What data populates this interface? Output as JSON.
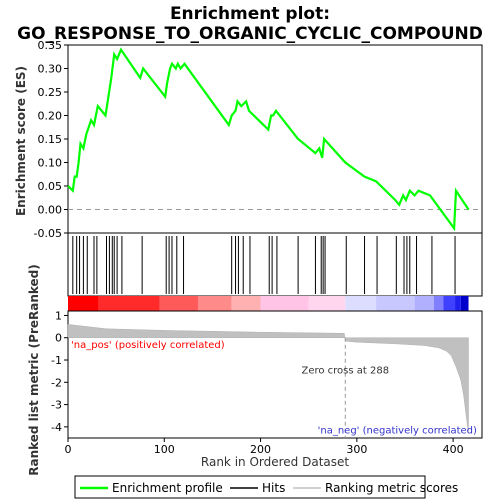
{
  "chart_data": {
    "type": "line",
    "title_line1": "Enrichment plot:",
    "title_line2": "GO_RESPONSE_TO_ORGANIC_CYCLIC_COMPOUND",
    "es_panel": {
      "ylabel": "Enrichment score (ES)",
      "ylim": [
        -0.05,
        0.35
      ],
      "yticks": [
        "-0.05",
        "0.00",
        "0.05",
        "0.10",
        "0.15",
        "0.20",
        "0.25",
        "0.30",
        "0.35"
      ],
      "ytick_values": [
        -0.05,
        0,
        0.05,
        0.1,
        0.15,
        0.2,
        0.25,
        0.3,
        0.35
      ],
      "series_name": "Enrichment profile",
      "color": "#00ff00",
      "x": [
        0,
        5,
        7,
        9,
        11,
        13,
        16,
        19,
        24,
        27,
        31,
        39,
        42,
        45,
        48,
        51,
        55,
        75,
        78,
        101,
        103,
        106,
        108,
        112,
        114,
        117,
        121,
        167,
        170,
        174,
        176,
        180,
        185,
        188,
        208,
        211,
        213,
        216,
        239,
        257,
        261,
        264,
        266,
        288,
        308,
        320,
        340,
        344,
        348,
        351,
        355,
        360,
        364,
        376,
        401,
        403,
        416
      ],
      "y": [
        0.05,
        0.04,
        0.07,
        0.07,
        0.1,
        0.14,
        0.13,
        0.16,
        0.19,
        0.18,
        0.22,
        0.2,
        0.24,
        0.28,
        0.33,
        0.32,
        0.34,
        0.28,
        0.3,
        0.24,
        0.27,
        0.3,
        0.31,
        0.3,
        0.31,
        0.3,
        0.31,
        0.18,
        0.2,
        0.21,
        0.23,
        0.22,
        0.23,
        0.21,
        0.17,
        0.2,
        0.2,
        0.21,
        0.15,
        0.12,
        0.13,
        0.11,
        0.15,
        0.1,
        0.07,
        0.06,
        0.02,
        0.01,
        0.03,
        0.02,
        0.04,
        0.03,
        0.04,
        0.03,
        -0.04,
        0.04,
        0.0
      ]
    },
    "hits": [
      5,
      9,
      12,
      16,
      20,
      27,
      30,
      40,
      43,
      46,
      48,
      51,
      56,
      77,
      102,
      105,
      108,
      113,
      120,
      170,
      174,
      177,
      182,
      189,
      209,
      212,
      217,
      239,
      257,
      263,
      265,
      267,
      289,
      308,
      321,
      341,
      349,
      352,
      355,
      362,
      378,
      402
    ],
    "rank_panel": {
      "ylabel": "Ranked list metric (PreRanked)",
      "ylim": [
        -4.5,
        1.2
      ],
      "yticks": [
        "1",
        "0",
        "-1",
        "-2",
        "-3",
        "-4"
      ],
      "ytick_values": [
        1,
        0,
        -1,
        -2,
        -3,
        -4
      ],
      "x": [
        0,
        10,
        40,
        100,
        200,
        287,
        288,
        300,
        340,
        370,
        385,
        393,
        398,
        403,
        408,
        411,
        413,
        415,
        416
      ],
      "y": [
        0.6,
        0.55,
        0.4,
        0.33,
        0.25,
        0.2,
        -0.15,
        -0.2,
        -0.27,
        -0.35,
        -0.45,
        -0.6,
        -0.8,
        -1.3,
        -1.9,
        -2.6,
        -3.3,
        -4.0,
        -4.2
      ],
      "zero_cross_label": "Zero cross at 288",
      "zero_cross_rank": 288,
      "pos_label": "'na_pos' (positively correlated)",
      "neg_label": "'na_neg' (negatively correlated)"
    },
    "xlabel": "Rank in Ordered Dataset",
    "xlim": [
      0,
      430
    ],
    "xticks": [
      "0",
      "100",
      "200",
      "300",
      "400"
    ],
    "xtick_values": [
      0,
      100,
      200,
      300,
      400
    ],
    "heatmap_bar": {
      "segments": [
        {
          "from": 0,
          "to": 32,
          "color": "#ff0000"
        },
        {
          "from": 32,
          "to": 95,
          "color": "#ff2a2a"
        },
        {
          "from": 95,
          "to": 135,
          "color": "#ff5a5a"
        },
        {
          "from": 135,
          "to": 170,
          "color": "#ff8a8a"
        },
        {
          "from": 170,
          "to": 200,
          "color": "#ffb0b0"
        },
        {
          "from": 200,
          "to": 250,
          "color": "#ffc4e6"
        },
        {
          "from": 250,
          "to": 288,
          "color": "#ffd6ee"
        },
        {
          "from": 288,
          "to": 320,
          "color": "#ddddff"
        },
        {
          "from": 320,
          "to": 360,
          "color": "#c8c8ff"
        },
        {
          "from": 360,
          "to": 380,
          "color": "#b0b0ff"
        },
        {
          "from": 380,
          "to": 390,
          "color": "#8080ff"
        },
        {
          "from": 390,
          "to": 402,
          "color": "#4040ff"
        },
        {
          "from": 402,
          "to": 408,
          "color": "#2020ee"
        },
        {
          "from": 408,
          "to": 416,
          "color": "#0000cc"
        }
      ]
    },
    "legend": [
      {
        "label": "Enrichment profile",
        "color": "#00ff00"
      },
      {
        "label": "Hits",
        "color": "#000000"
      },
      {
        "label": "Ranking metric scores",
        "color": "#c0c0c0"
      }
    ]
  }
}
